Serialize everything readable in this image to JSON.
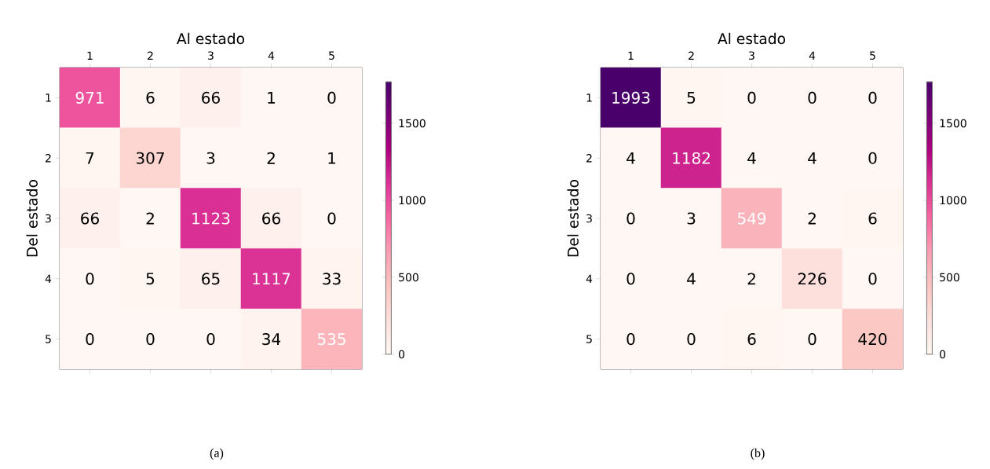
{
  "chart_data": [
    {
      "type": "heatmap",
      "xlabel": "Al estado",
      "ylabel": "Del estado",
      "categories": [
        "1",
        "2",
        "3",
        "4",
        "5"
      ],
      "y_categories": [
        "1",
        "2",
        "3",
        "4",
        "5"
      ],
      "cells": [
        [
          971,
          6,
          66,
          1,
          0
        ],
        [
          7,
          307,
          3,
          2,
          1
        ],
        [
          66,
          2,
          1123,
          66,
          0
        ],
        [
          0,
          5,
          65,
          1117,
          33
        ],
        [
          0,
          0,
          0,
          34,
          535
        ]
      ],
      "clim": [
        0,
        1770
      ],
      "cticks": [
        0,
        500,
        1000,
        1500
      ],
      "data_labels": true,
      "annotations": [
        "(a)"
      ]
    },
    {
      "type": "heatmap",
      "xlabel": "Al estado",
      "ylabel": "Del estado",
      "categories": [
        "1",
        "2",
        "3",
        "4",
        "5"
      ],
      "y_categories": [
        "1",
        "2",
        "3",
        "4",
        "5"
      ],
      "cells": [
        [
          1993,
          5,
          0,
          0,
          0
        ],
        [
          4,
          1182,
          4,
          4,
          0
        ],
        [
          0,
          3,
          549,
          2,
          6
        ],
        [
          0,
          4,
          2,
          226,
          0
        ],
        [
          0,
          0,
          6,
          0,
          420
        ]
      ],
      "clim": [
        0,
        1770
      ],
      "cticks": [
        0,
        500,
        1000,
        1500
      ],
      "data_labels": true,
      "annotations": [
        "(b)"
      ]
    }
  ]
}
